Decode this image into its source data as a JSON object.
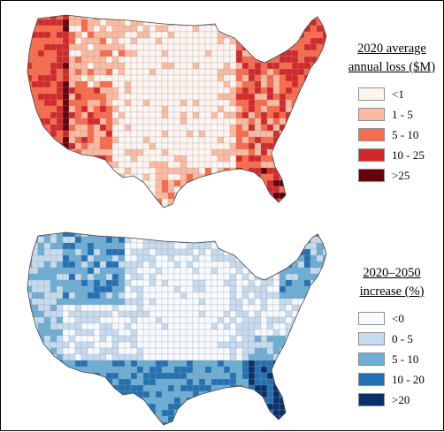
{
  "maps": [
    {
      "id": "annual-loss",
      "legend": {
        "title_line1": "2020 average",
        "title_line2": "annual loss ($M)",
        "items": [
          {
            "label": "<1",
            "color": "#fff5f0"
          },
          {
            "label": "1 - 5",
            "color": "#fcbba1"
          },
          {
            "label": "5 - 10",
            "color": "#fb6a4a"
          },
          {
            "label": "10 - 25",
            "color": "#d62728"
          },
          {
            "label": ">25",
            "color": "#67000d"
          }
        ]
      }
    },
    {
      "id": "loss-increase",
      "legend": {
        "title_line1": "2020–2050",
        "title_line2": "increase (%)",
        "items": [
          {
            "label": "<0",
            "color": "#f7fbff"
          },
          {
            "label": "0 - 5",
            "color": "#c6dbef"
          },
          {
            "label": "5 - 10",
            "color": "#6baed6"
          },
          {
            "label": "10 - 20",
            "color": "#2171b5"
          },
          {
            "label": ">20",
            "color": "#08306b"
          }
        ]
      }
    }
  ]
}
